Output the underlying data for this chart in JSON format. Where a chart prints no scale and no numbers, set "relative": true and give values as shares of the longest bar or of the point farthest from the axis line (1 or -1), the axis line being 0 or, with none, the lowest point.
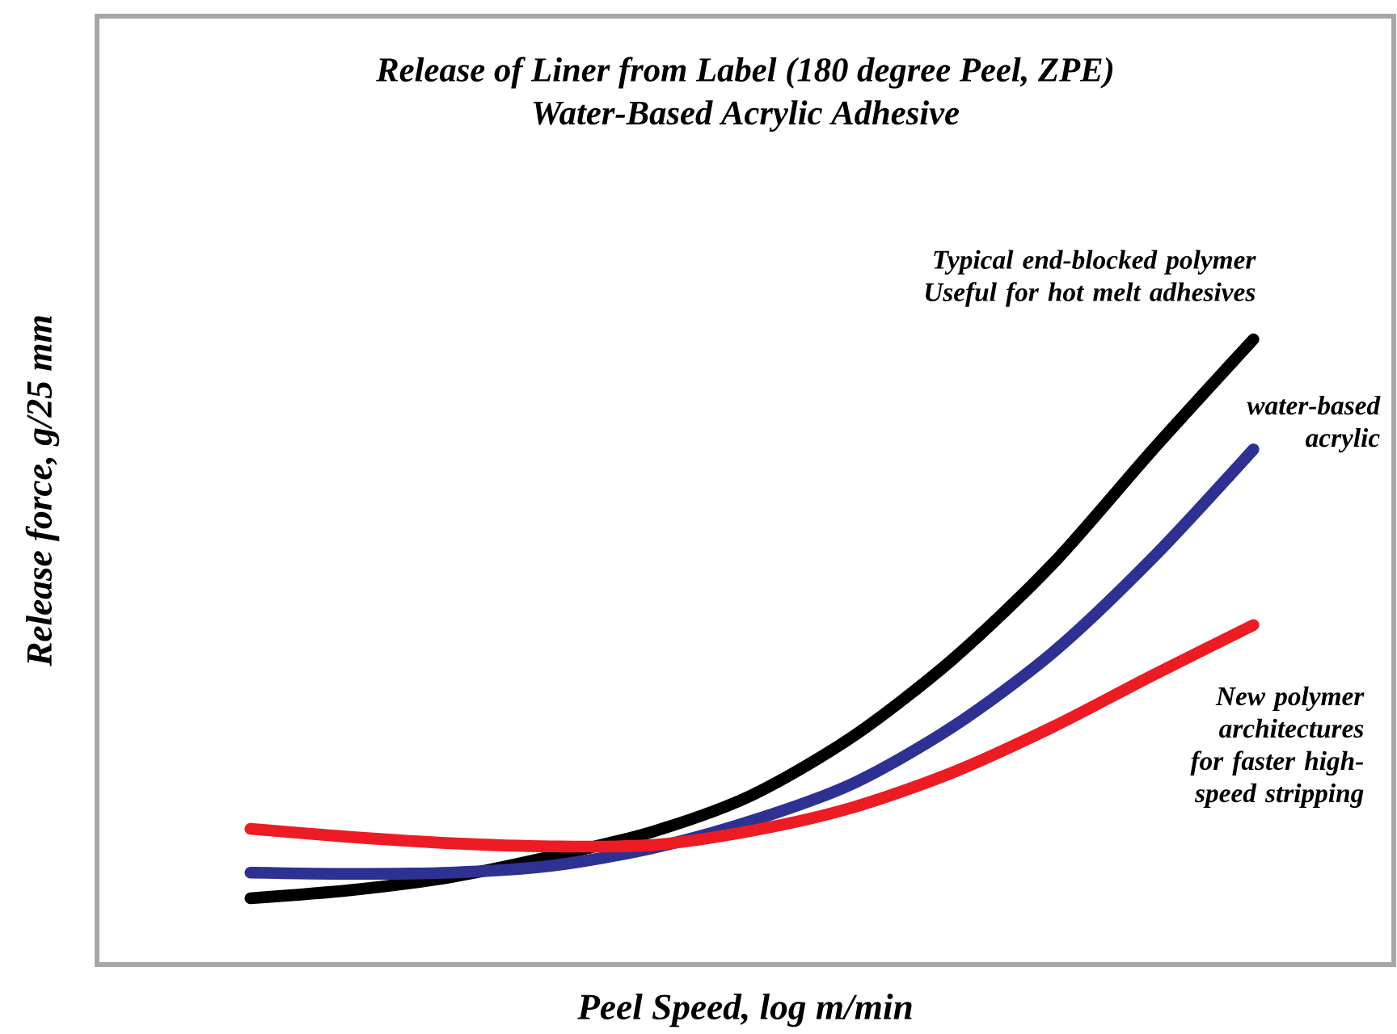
{
  "chart_data": {
    "type": "line",
    "title": "Release of Liner from Label (180 degree Peel, ZPE)",
    "subtitle": "Water-Based Acrylic Adhesive",
    "xlabel": "Peel Speed, log m/min",
    "ylabel": "Release force, g/25 mm",
    "relative": true,
    "categories": [
      null,
      null,
      null,
      null,
      null,
      null,
      null,
      null,
      null,
      null,
      null
    ],
    "series": [
      {
        "name": "Typical end-blocked polymer Useful for hot melt adhesives",
        "color": "#000000",
        "values": [
          0.106,
          0.119,
          0.14,
          0.173,
          0.212,
          0.271,
          0.364,
          0.488,
          0.641,
          0.824,
          1
        ]
      },
      {
        "name": "water-based acrylic",
        "color": "#2e3192",
        "values": [
          0.147,
          0.145,
          0.147,
          0.158,
          0.186,
          0.23,
          0.289,
          0.38,
          0.499,
          0.651,
          0.824
        ]
      },
      {
        "name": "New polymer architectures for faster high-speed stripping",
        "color": "#ed1c24",
        "values": [
          0.217,
          0.204,
          0.194,
          0.189,
          0.191,
          0.214,
          0.251,
          0.307,
          0.38,
          0.463,
          0.543
        ]
      }
    ]
  }
}
